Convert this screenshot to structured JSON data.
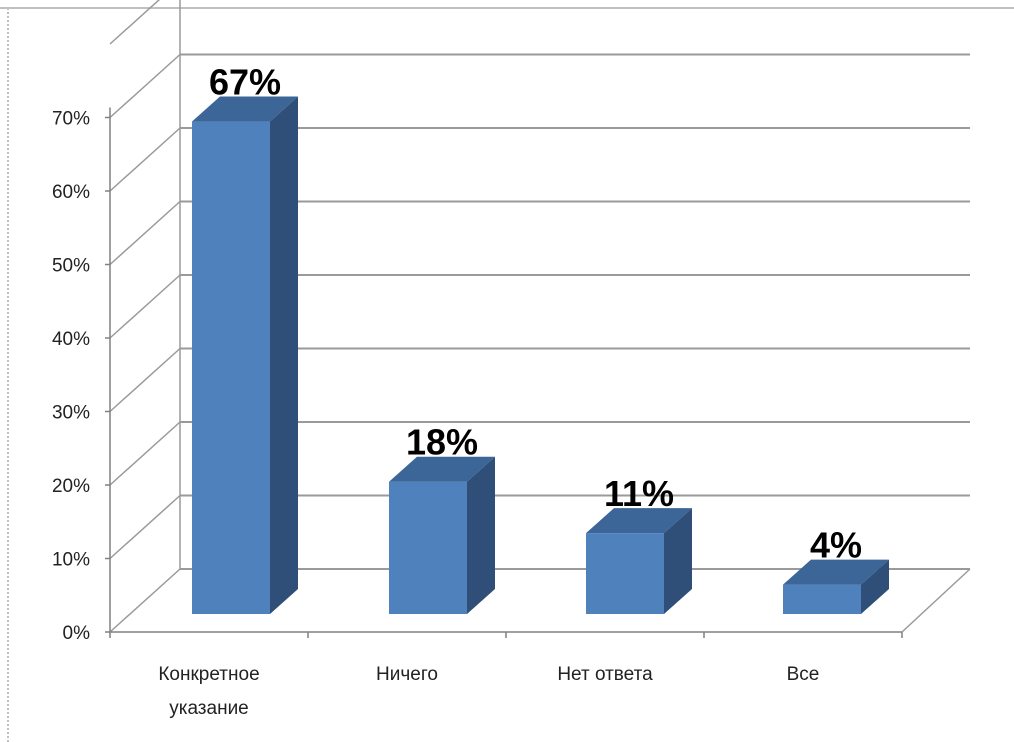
{
  "chart_data": {
    "type": "bar",
    "categories": [
      "Конкретное указание",
      "Ничего",
      "Нет ответа",
      "Все"
    ],
    "category_lines": [
      [
        "Конкретное",
        "указание"
      ],
      [
        "Ничего"
      ],
      [
        "Нет ответа"
      ],
      [
        "Все"
      ]
    ],
    "values": [
      67,
      18,
      11,
      4
    ],
    "data_labels": [
      "67%",
      "18%",
      "11%",
      "4%"
    ],
    "y_ticks": [
      "0%",
      "10%",
      "20%",
      "30%",
      "40%",
      "50%",
      "60%",
      "70%"
    ],
    "ylim": [
      0,
      70
    ],
    "title": "",
    "xlabel": "",
    "ylabel": "",
    "grid": true,
    "style": "3d-column",
    "colors": {
      "bar_front": "#4f81bd",
      "bar_top": "#3c6698",
      "bar_side": "#2f4f78",
      "grid": "#9a9a9a",
      "frame": "#c0c0c0"
    }
  }
}
